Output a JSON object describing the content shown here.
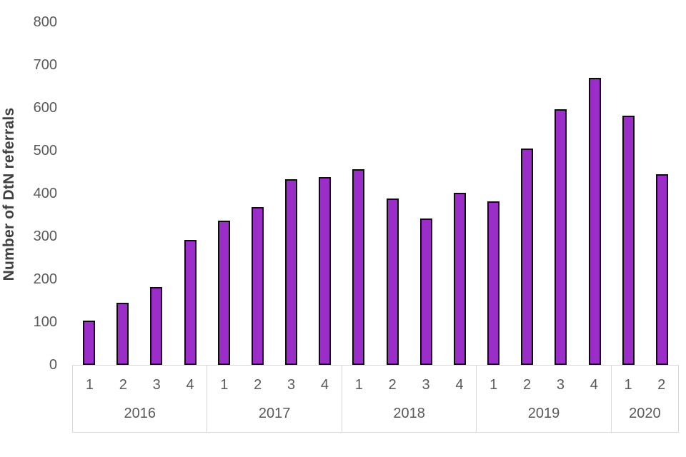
{
  "chart_data": {
    "type": "bar",
    "title": "",
    "xlabel": "",
    "ylabel": "Number of DtN referrals",
    "ylim": [
      0,
      800
    ],
    "yticks": [
      0,
      100,
      200,
      300,
      400,
      500,
      600,
      700,
      800
    ],
    "grid": false,
    "legend": null,
    "bar_fill_color": "#9B2EC8",
    "bar_border_color": "#0D0D0D",
    "axis_label_color": "#595959",
    "axis_line_color": "#D9D9D9",
    "series_name": "Number of DtN referrals",
    "groups": [
      {
        "year": "2016",
        "quarters": [
          "1",
          "2",
          "3",
          "4"
        ],
        "values": [
          104,
          145,
          182,
          292
        ]
      },
      {
        "year": "2017",
        "quarters": [
          "1",
          "2",
          "3",
          "4"
        ],
        "values": [
          336,
          368,
          433,
          438
        ]
      },
      {
        "year": "2018",
        "quarters": [
          "1",
          "2",
          "3",
          "4"
        ],
        "values": [
          457,
          389,
          341,
          402
        ]
      },
      {
        "year": "2019",
        "quarters": [
          "1",
          "2",
          "3",
          "4"
        ],
        "values": [
          381,
          505,
          596,
          670
        ]
      },
      {
        "year": "2020",
        "quarters": [
          "1",
          "2"
        ],
        "values": [
          581,
          445
        ]
      }
    ]
  }
}
